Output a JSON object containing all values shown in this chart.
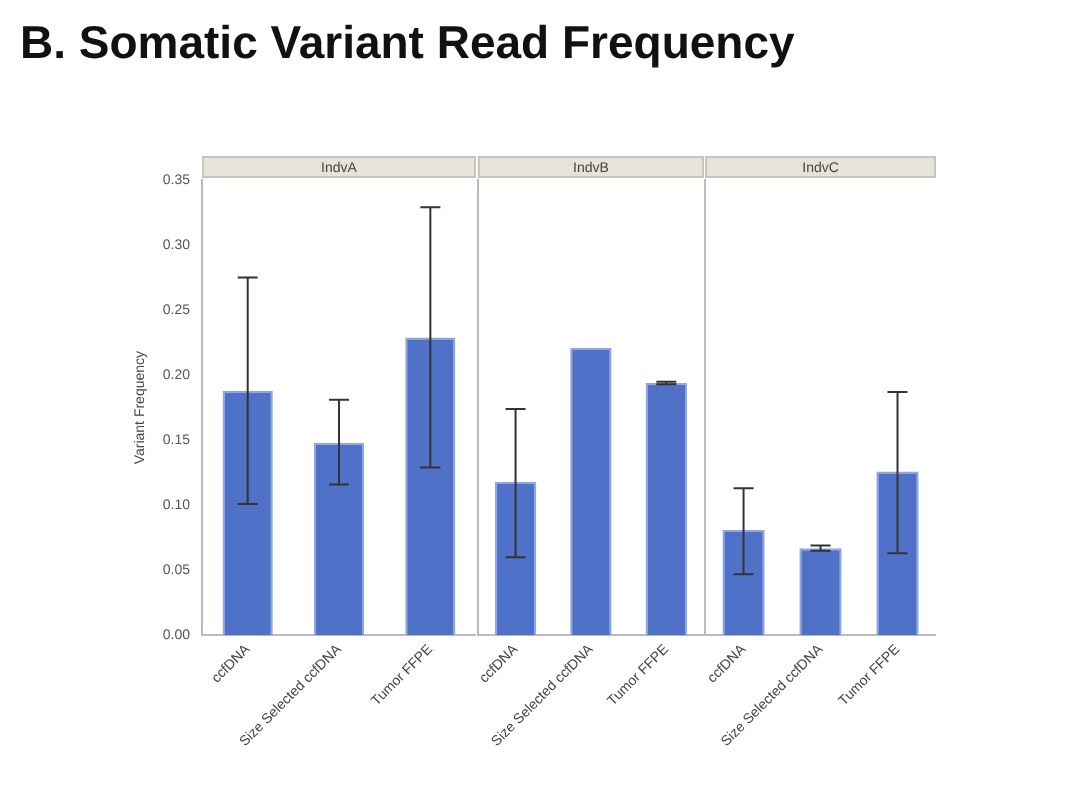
{
  "chart_data": [
    {
      "type": "bar",
      "title": "IndvA",
      "ylabel": "Variant Frequency",
      "annotations": [
        "B. Somatic Variant Read Frequency"
      ],
      "categories": [
        "ccfDNA",
        "Size Selected ccfDNA",
        "Tumor FFPE"
      ],
      "values": [
        0.188,
        0.148,
        0.229
      ],
      "errors": [
        [
          0.101,
          0.275
        ],
        [
          0.116,
          0.181
        ],
        [
          0.129,
          0.329
        ]
      ],
      "color": "#4f72c8",
      "ylim": [
        0,
        0.35
      ],
      "yticks": [
        {
          "value": 0,
          "label": "0.00"
        },
        {
          "value": 0.05,
          "label": "0.05"
        },
        {
          "value": 0.1,
          "label": "0.10"
        },
        {
          "value": 0.15,
          "label": "0.15"
        },
        {
          "value": 0.2,
          "label": "0.20"
        },
        {
          "value": 0.25,
          "label": "0.25"
        },
        {
          "value": 0.3,
          "label": "0.30"
        },
        {
          "value": 0.35,
          "label": "0.35"
        }
      ],
      "grid": false,
      "legend": false
    },
    {
      "type": "bar",
      "title": "IndvB",
      "categories": [
        "ccfDNA",
        "Size Selected ccfDNA",
        "Tumor FFPE"
      ],
      "values": [
        0.118,
        0.221,
        0.194
      ],
      "errors": [
        [
          0.06,
          0.174
        ],
        null,
        [
          0.193,
          0.195
        ]
      ],
      "color": "#4f72c8",
      "ylim": [
        0,
        0.35
      ],
      "tick_labels": "x",
      "grid": false,
      "legend": false
    },
    {
      "type": "bar",
      "title": "IndvC",
      "categories": [
        "ccfDNA",
        "Size Selected ccfDNA",
        "Tumor FFPE"
      ],
      "values": [
        0.081,
        0.067,
        0.126
      ],
      "errors": [
        [
          0.047,
          0.113
        ],
        [
          0.065,
          0.069
        ],
        [
          0.063,
          0.187
        ]
      ],
      "color": "#4f72c8",
      "ylim": [
        0,
        0.35
      ],
      "tick_labels": "x",
      "grid": false,
      "legend": false
    }
  ]
}
